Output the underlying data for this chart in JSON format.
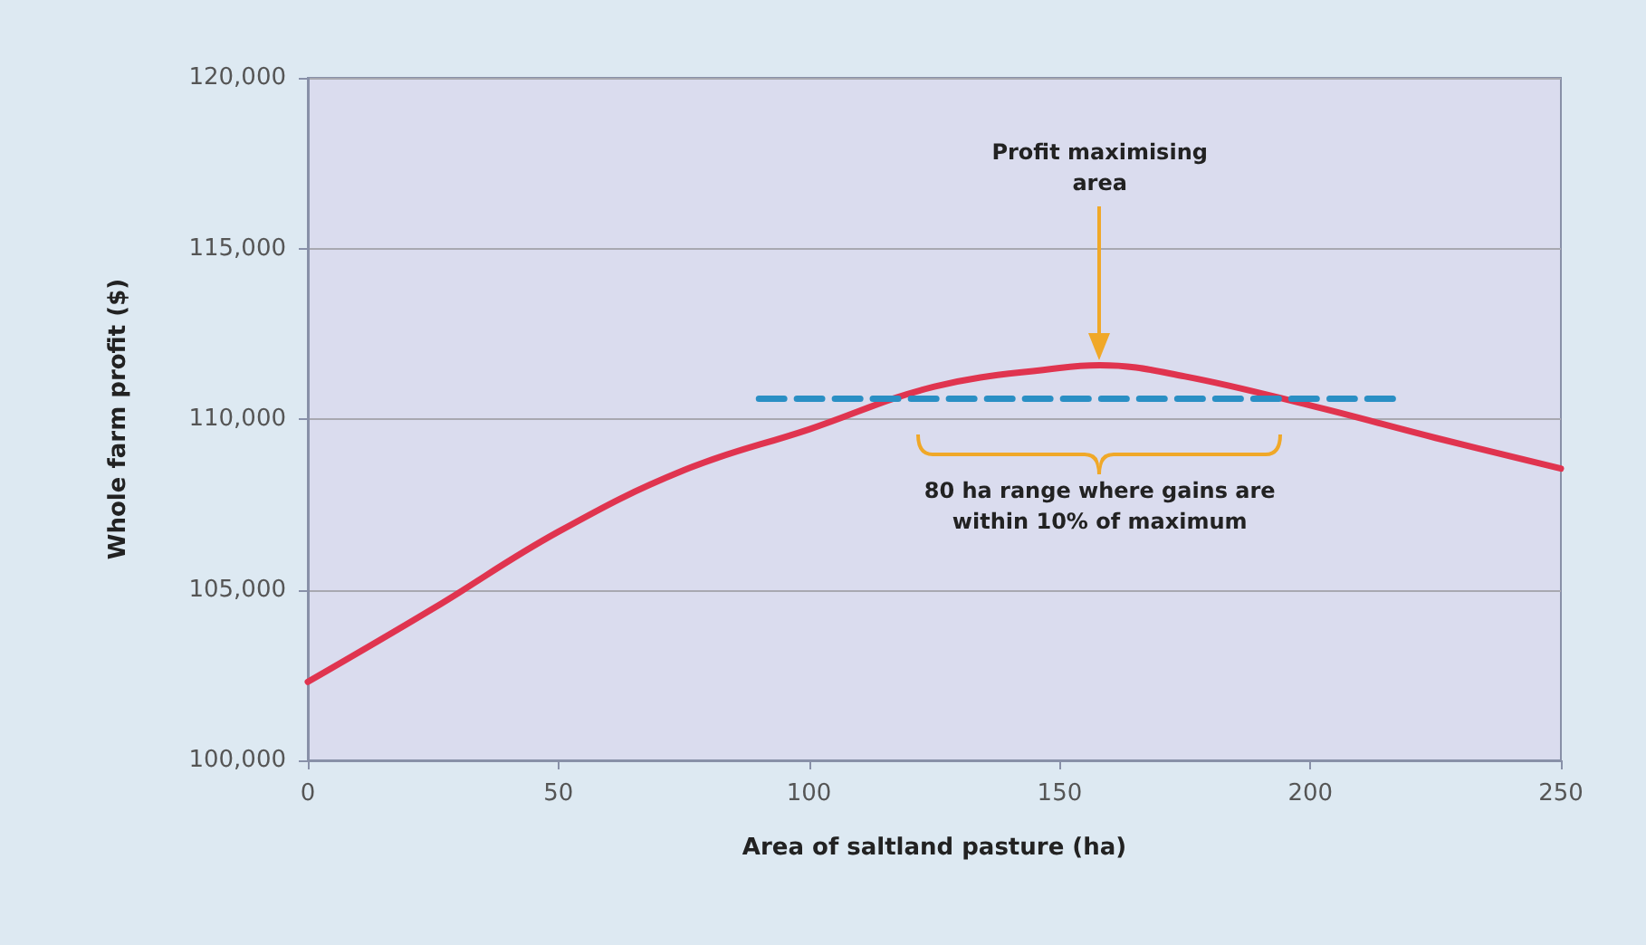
{
  "chart_data": {
    "type": "line",
    "xlabel": "Area of saltland pasture (ha)",
    "ylabel": "Whole farm profit ($)",
    "xlim": [
      0,
      250
    ],
    "xticks": [
      0,
      50,
      100,
      150,
      200,
      250
    ],
    "ylim": [
      100000,
      120000
    ],
    "yticks": [
      {
        "value": 100000,
        "label": "100,000"
      },
      {
        "value": 105000,
        "label": "105,000"
      },
      {
        "value": 110000,
        "label": "110,000"
      },
      {
        "value": 115000,
        "label": "115,000"
      },
      {
        "value": 120000,
        "label": "120,000"
      }
    ],
    "grid": "y",
    "marker": "none",
    "series": [
      {
        "color": "#e0344f",
        "line_style": "solid",
        "x": [
          0,
          25,
          50,
          75,
          100,
          125,
          150,
          158,
          175,
          200,
          225,
          250
        ],
        "values": [
          102300,
          104450,
          106700,
          108500,
          109700,
          110950,
          111500,
          111580,
          111250,
          110400,
          109450,
          108550
        ]
      },
      {
        "color": "#2a8fc4",
        "line_style": "dashed",
        "x": [
          90,
          217
        ],
        "values": [
          110600,
          110600
        ]
      }
    ],
    "annotations": [
      "Profit maximising\narea",
      "80 ha range where gains are\nwithin 10% of maximum"
    ]
  }
}
